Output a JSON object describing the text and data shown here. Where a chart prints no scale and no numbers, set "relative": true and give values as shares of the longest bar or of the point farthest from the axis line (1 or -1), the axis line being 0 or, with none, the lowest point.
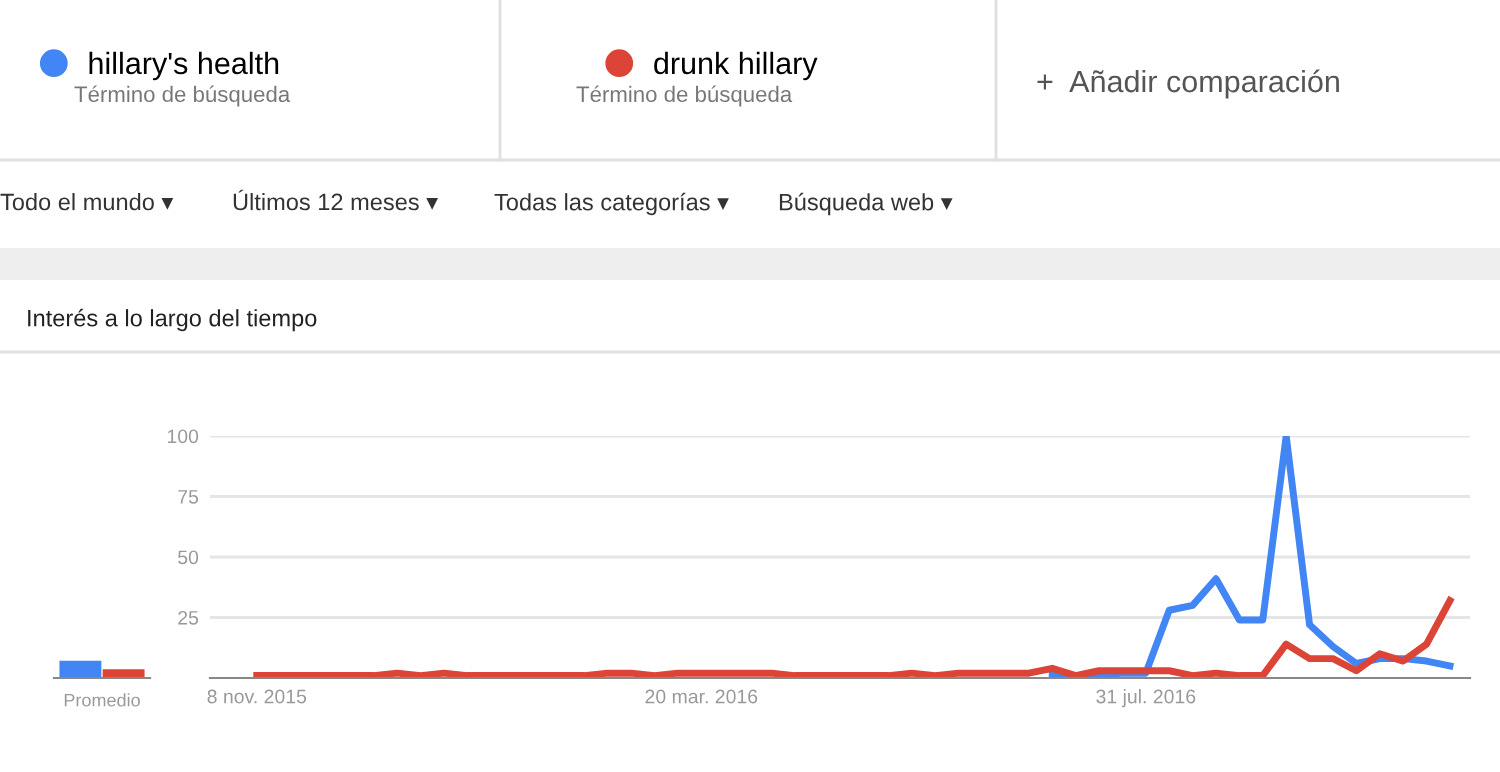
{
  "chart_data": [
    {
      "type": "line",
      "title": "Interés a lo largo del tiempo",
      "annotations": [
        "Término de búsqueda",
        "Término de búsqueda",
        "+  Añadir comparación",
        "Todo el mundo ▾",
        "Últimos 12 meses ▾",
        "Todas las categorías ▾",
        "Búsqueda web ▾"
      ],
      "x": [
        "2015-11-08",
        "2015-11-15",
        "2015-11-22",
        "2015-11-29",
        "2015-12-06",
        "2015-12-13",
        "2015-12-20",
        "2015-12-27",
        "2016-01-03",
        "2016-01-10",
        "2016-01-17",
        "2016-01-24",
        "2016-01-31",
        "2016-02-07",
        "2016-02-14",
        "2016-02-21",
        "2016-02-28",
        "2016-03-06",
        "2016-03-13",
        "2016-03-20",
        "2016-03-27",
        "2016-04-03",
        "2016-04-10",
        "2016-04-17",
        "2016-04-24",
        "2016-05-01",
        "2016-05-08",
        "2016-05-15",
        "2016-05-22",
        "2016-05-29",
        "2016-06-05",
        "2016-06-12",
        "2016-06-19",
        "2016-06-26",
        "2016-07-03",
        "2016-07-10",
        "2016-07-17",
        "2016-07-24",
        "2016-07-31",
        "2016-08-07",
        "2016-08-14",
        "2016-08-21",
        "2016-08-28",
        "2016-09-04",
        "2016-09-11",
        "2016-09-18",
        "2016-09-25",
        "2016-10-02",
        "2016-10-09",
        "2016-10-16",
        "2016-10-23",
        "2016-10-30"
      ],
      "series": [
        {
          "name": "hillary's health",
          "color": "#4285f4",
          "values": [
            null,
            null,
            null,
            null,
            null,
            null,
            null,
            null,
            null,
            null,
            null,
            null,
            null,
            null,
            null,
            null,
            null,
            null,
            null,
            null,
            null,
            null,
            null,
            null,
            null,
            null,
            null,
            null,
            null,
            null,
            null,
            null,
            null,
            null,
            1,
            1,
            1,
            2,
            2,
            28,
            30,
            41,
            24,
            24,
            100,
            22,
            13,
            6,
            8,
            8,
            7,
            5
          ]
        },
        {
          "name": "drunk hillary",
          "color": "#db4437",
          "values": [
            1,
            1,
            1,
            1,
            1,
            1,
            2,
            1,
            2,
            1,
            1,
            1,
            1,
            1,
            1,
            2,
            2,
            1,
            2,
            2,
            2,
            2,
            2,
            1,
            1,
            1,
            1,
            1,
            2,
            1,
            2,
            2,
            2,
            2,
            4,
            1,
            3,
            3,
            3,
            3,
            1,
            2,
            1,
            1,
            14,
            8,
            8,
            3,
            10,
            7,
            14,
            32
          ]
        }
      ],
      "xlim": [
        "2015-10-25",
        "2016-11-05"
      ],
      "xticks": [
        {
          "value": "2015-11-08",
          "label": "8 nov. 2015"
        },
        {
          "value": "2016-03-20",
          "label": "20 mar. 2016"
        },
        {
          "value": "2016-07-31",
          "label": "31 jul. 2016"
        }
      ],
      "ylim": [
        0,
        100
      ],
      "yticks": [
        25,
        50,
        75,
        100
      ],
      "grid": "y",
      "legend": "top",
      "marker": "none",
      "line_style": "solid"
    },
    {
      "type": "bar",
      "xlabel": "Promedio",
      "categories": [
        null
      ],
      "relative": true,
      "series": [
        {
          "color": "#4285f4",
          "values": [
            1
          ]
        },
        {
          "color": "#db4437",
          "values": [
            0.5
          ]
        }
      ]
    }
  ]
}
